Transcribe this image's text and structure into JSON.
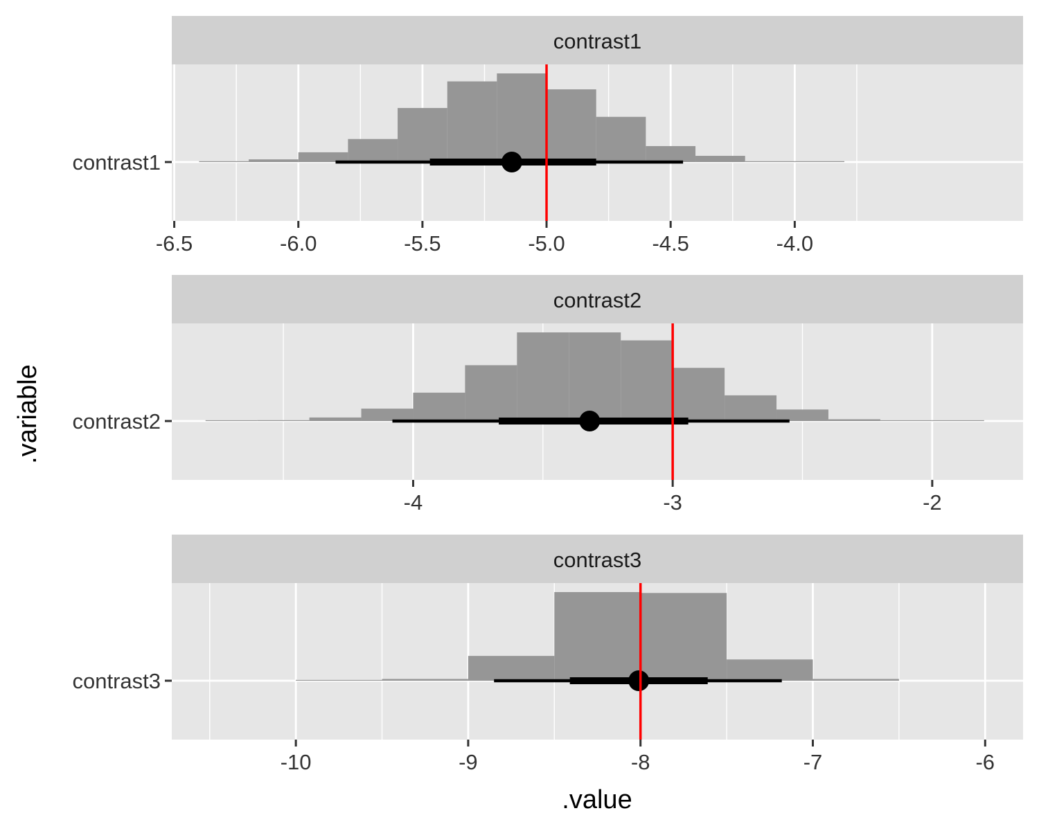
{
  "chart_data": {
    "type": "histogram-interval",
    "xlabel": ".value",
    "ylabel": ".variable",
    "colors": {
      "panel_bg": "#e6e6e6",
      "strip_bg": "#d0d0d0",
      "grid": "#ffffff",
      "bars": "#969696",
      "interval": "#000000",
      "reference": "#ff0000",
      "text": "#333333"
    },
    "panels": [
      {
        "strip": "contrast1",
        "category": "contrast1",
        "xlim": [
          -6.51,
          -3.08
        ],
        "ticks": [
          -6.5,
          -6.0,
          -5.5,
          -5.0,
          -4.5,
          -4.0
        ],
        "tick_labels": [
          "-6.5",
          "-6.0",
          "-5.5",
          "-5.0",
          "-4.5",
          "-4.0"
        ],
        "bins": [
          {
            "x0": -6.4,
            "x1": -6.2,
            "d": 0.01
          },
          {
            "x0": -6.2,
            "x1": -6.0,
            "d": 0.03
          },
          {
            "x0": -6.0,
            "x1": -5.8,
            "d": 0.11
          },
          {
            "x0": -5.8,
            "x1": -5.6,
            "d": 0.26
          },
          {
            "x0": -5.6,
            "x1": -5.4,
            "d": 0.61
          },
          {
            "x0": -5.4,
            "x1": -5.2,
            "d": 0.91
          },
          {
            "x0": -5.2,
            "x1": -5.0,
            "d": 1.0
          },
          {
            "x0": -5.0,
            "x1": -4.8,
            "d": 0.82
          },
          {
            "x0": -4.8,
            "x1": -4.6,
            "d": 0.51
          },
          {
            "x0": -4.6,
            "x1": -4.4,
            "d": 0.18
          },
          {
            "x0": -4.4,
            "x1": -4.2,
            "d": 0.07
          },
          {
            "x0": -4.2,
            "x1": -4.0,
            "d": 0.01
          },
          {
            "x0": -4.0,
            "x1": -3.8,
            "d": 0.01
          }
        ],
        "point": -5.14,
        "interval_66": [
          -5.47,
          -4.8
        ],
        "interval_95": [
          -5.85,
          -4.45
        ],
        "reference": -5.0
      },
      {
        "strip": "contrast2",
        "category": "contrast2",
        "xlim": [
          -4.93,
          -1.65
        ],
        "ticks": [
          -4,
          -3,
          -2
        ],
        "tick_labels": [
          "-4",
          "-3",
          "-2"
        ],
        "bins": [
          {
            "x0": -4.8,
            "x1": -4.6,
            "d": 0.003
          },
          {
            "x0": -4.6,
            "x1": -4.4,
            "d": 0.01
          },
          {
            "x0": -4.4,
            "x1": -4.2,
            "d": 0.04
          },
          {
            "x0": -4.2,
            "x1": -4.0,
            "d": 0.14
          },
          {
            "x0": -4.0,
            "x1": -3.8,
            "d": 0.32
          },
          {
            "x0": -3.8,
            "x1": -3.6,
            "d": 0.63
          },
          {
            "x0": -3.6,
            "x1": -3.4,
            "d": 1.0
          },
          {
            "x0": -3.4,
            "x1": -3.2,
            "d": 1.0
          },
          {
            "x0": -3.2,
            "x1": -3.0,
            "d": 0.91
          },
          {
            "x0": -3.0,
            "x1": -2.8,
            "d": 0.6
          },
          {
            "x0": -2.8,
            "x1": -2.6,
            "d": 0.29
          },
          {
            "x0": -2.6,
            "x1": -2.4,
            "d": 0.13
          },
          {
            "x0": -2.4,
            "x1": -2.2,
            "d": 0.02
          },
          {
            "x0": -2.2,
            "x1": -2.0,
            "d": 0.003
          },
          {
            "x0": -2.0,
            "x1": -1.8,
            "d": 0.003
          }
        ],
        "point": -3.32,
        "interval_66": [
          -3.67,
          -2.94
        ],
        "interval_95": [
          -4.08,
          -2.55
        ],
        "reference": -3.0
      },
      {
        "strip": "contrast3",
        "category": "contrast3",
        "xlim": [
          -10.72,
          -5.78
        ],
        "ticks": [
          -10,
          -9,
          -8,
          -7,
          -6
        ],
        "tick_labels": [
          "-10",
          "-9",
          "-8",
          "-7",
          "-6"
        ],
        "bins": [
          {
            "x0": -10.0,
            "x1": -9.5,
            "d": 0.003
          },
          {
            "x0": -9.5,
            "x1": -9.0,
            "d": 0.02
          },
          {
            "x0": -9.0,
            "x1": -8.5,
            "d": 0.28
          },
          {
            "x0": -8.5,
            "x1": -8.0,
            "d": 1.0
          },
          {
            "x0": -8.0,
            "x1": -7.5,
            "d": 0.99
          },
          {
            "x0": -7.5,
            "x1": -7.0,
            "d": 0.24
          },
          {
            "x0": -7.0,
            "x1": -6.5,
            "d": 0.02
          }
        ],
        "point": -8.01,
        "interval_66": [
          -8.41,
          -7.61
        ],
        "interval_95": [
          -8.85,
          -7.18
        ],
        "reference": -8.0
      }
    ]
  }
}
